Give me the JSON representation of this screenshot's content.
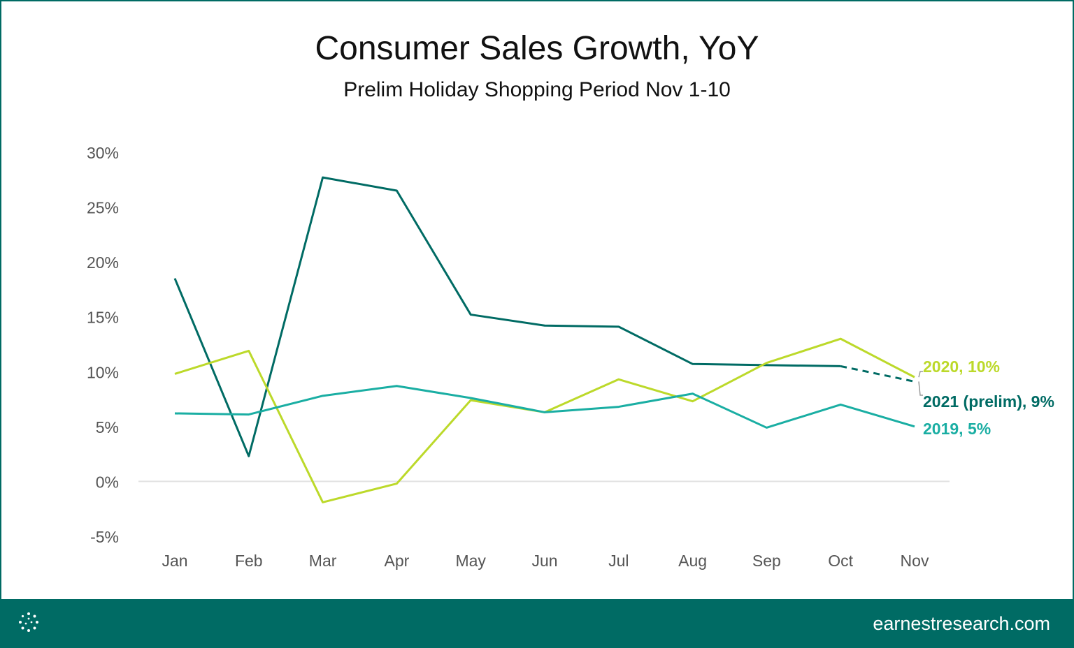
{
  "chart_data": {
    "type": "line",
    "title": "Consumer Sales Growth, YoY",
    "subtitle": "Prelim Holiday Shopping Period Nov 1-10",
    "categories": [
      "Jan",
      "Feb",
      "Mar",
      "Apr",
      "May",
      "Jun",
      "Jul",
      "Aug",
      "Sep",
      "Oct",
      "Nov"
    ],
    "y_ticks": [
      "30%",
      "25%",
      "20%",
      "15%",
      "10%",
      "5%",
      "0%",
      "-5%"
    ],
    "ylim": [
      -5,
      30
    ],
    "grid": false,
    "series": [
      {
        "name": "2021",
        "label": "2021 (prelim), 9%",
        "color": "#006b64",
        "values": [
          18.5,
          2.3,
          27.7,
          26.5,
          15.2,
          14.2,
          14.1,
          10.7,
          10.6,
          10.5,
          9.1
        ],
        "dashed_from_index": 9
      },
      {
        "name": "2020",
        "label": "2020, 10%",
        "color": "#bcd92a",
        "values": [
          9.8,
          11.9,
          -1.9,
          -0.2,
          7.4,
          6.3,
          9.3,
          7.3,
          10.8,
          13.0,
          9.5
        ]
      },
      {
        "name": "2019",
        "label": "2019, 5%",
        "color": "#1aaea3",
        "values": [
          6.2,
          6.1,
          7.8,
          8.7,
          7.6,
          6.3,
          6.8,
          8.0,
          4.9,
          7.0,
          5.0
        ]
      }
    ]
  },
  "footer": {
    "site": "earnestresearch.com",
    "logo_icon": "dotted-circle-logo",
    "background": "#006b64"
  }
}
